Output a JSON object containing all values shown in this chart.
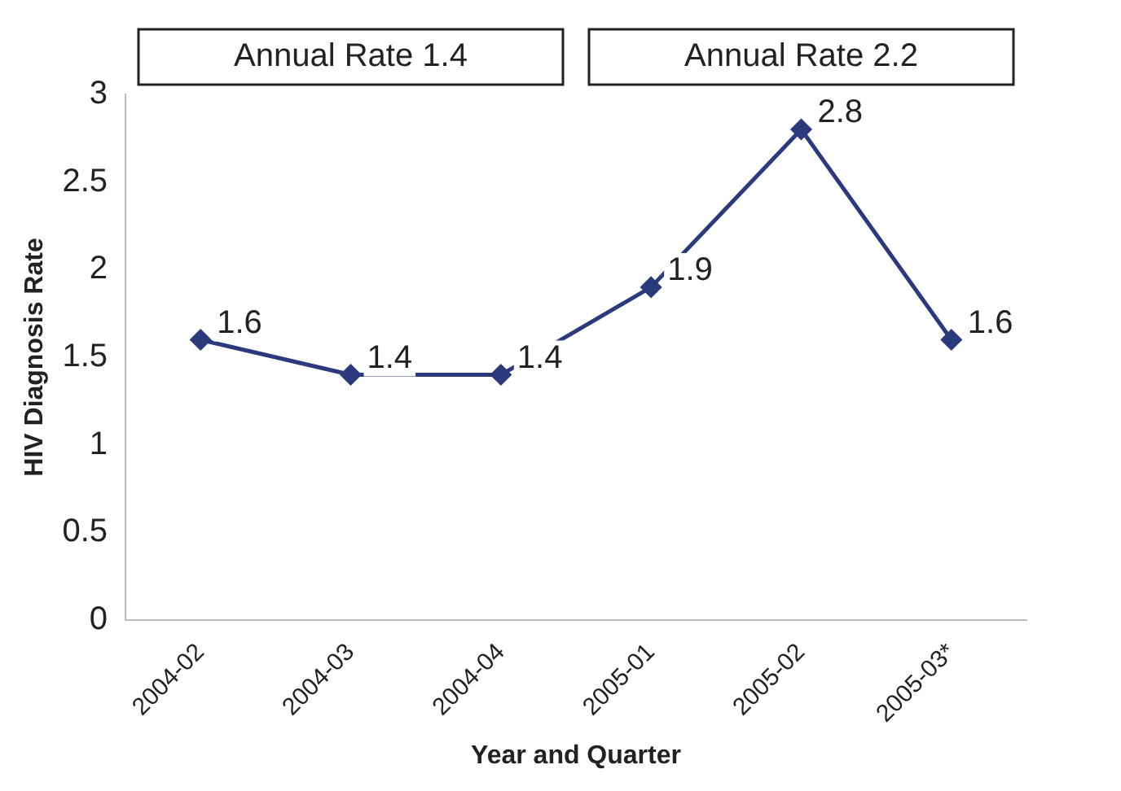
{
  "chart_data": {
    "type": "line",
    "xlabel": "Year and Quarter",
    "ylabel": "HIV Diagnosis Rate",
    "categories": [
      "2004-02",
      "2004-03",
      "2004-04",
      "2005-01",
      "2005-02",
      "2005-03*"
    ],
    "series": [
      {
        "color": "#2b3a7c",
        "values": [
          1.6,
          1.4,
          1.4,
          1.9,
          2.8,
          1.6
        ]
      }
    ],
    "ylim": [
      0,
      3
    ],
    "yticks": [
      0,
      0.5,
      1,
      1.5,
      2,
      2.5,
      3
    ],
    "grid": false,
    "legend": false,
    "marker": "diamond",
    "line_style": "solid",
    "data_labels": true,
    "annotations": [
      "Annual Rate 1.4",
      "Annual Rate 2.2"
    ]
  }
}
